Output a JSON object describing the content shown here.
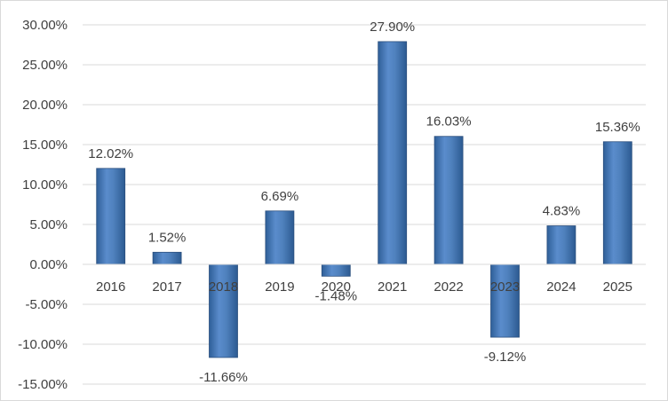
{
  "chart_data": {
    "type": "bar",
    "title": "",
    "xlabel": "",
    "ylabel": "",
    "categories": [
      "2016",
      "2017",
      "2018",
      "2019",
      "2020",
      "2021",
      "2022",
      "2023",
      "2024",
      "2025"
    ],
    "values": [
      12.02,
      1.52,
      -11.66,
      6.69,
      -1.48,
      27.9,
      16.03,
      -9.12,
      4.83,
      15.36
    ],
    "data_labels": [
      "12.02%",
      "1.52%",
      "-11.66%",
      "6.69%",
      "-1.48%",
      "27.90%",
      "16.03%",
      "-9.12%",
      "4.83%",
      "15.36%"
    ],
    "ylim": [
      -15,
      30
    ],
    "yticks": [
      30,
      25,
      20,
      15,
      10,
      5,
      0,
      -5,
      -10,
      -15
    ],
    "ytick_labels": [
      "30.00%",
      "25.00%",
      "20.00%",
      "15.00%",
      "10.00%",
      "5.00%",
      "0.00%",
      "-5.00%",
      "-10.00%",
      "-15.00%"
    ],
    "grid": true,
    "legend": "none",
    "bar_color": "#4f81bd"
  }
}
